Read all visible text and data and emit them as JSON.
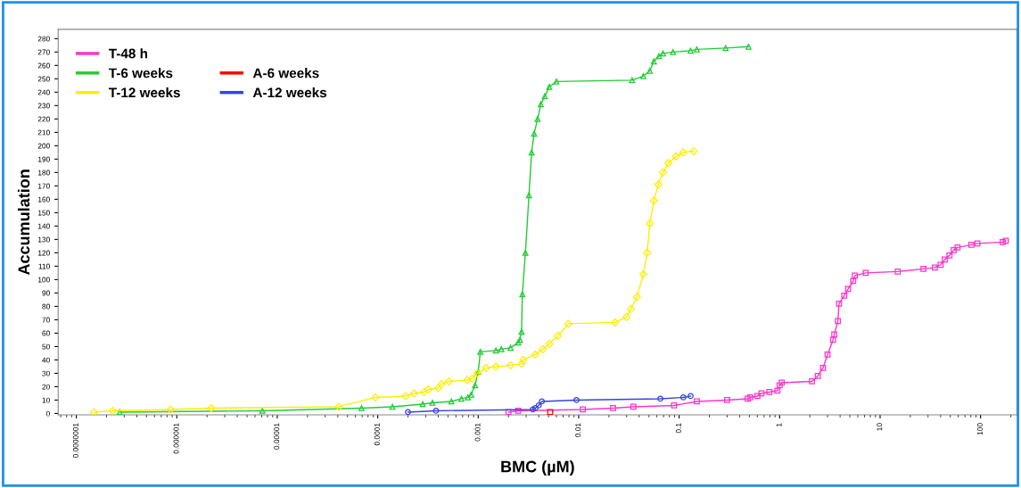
{
  "chart_data": {
    "type": "line",
    "xlabel": "BMC (µM)",
    "ylabel": "Accumulation",
    "log": "x",
    "grid": false,
    "legend": "top left",
    "line_style": "solid",
    "xlim": [
      6.6e-08,
      230
    ],
    "ylim": [
      -1,
      287
    ],
    "xticks": [
      {
        "value": 1e-07,
        "label": "0.0000001"
      },
      {
        "value": 1e-06,
        "label": "0.000001"
      },
      {
        "value": 1e-05,
        "label": "0.00001"
      },
      {
        "value": 0.0001,
        "label": "0.0001"
      },
      {
        "value": 0.001,
        "label": "0.001"
      },
      {
        "value": 0.01,
        "label": "0.01"
      },
      {
        "value": 0.1,
        "label": "0.1"
      },
      {
        "value": 1,
        "label": "1"
      },
      {
        "value": 10,
        "label": "10"
      },
      {
        "value": 100,
        "label": "100"
      }
    ],
    "yticks": [
      0,
      10,
      20,
      30,
      40,
      50,
      60,
      70,
      80,
      90,
      100,
      110,
      120,
      130,
      140,
      150,
      160,
      170,
      180,
      190,
      200,
      210,
      220,
      230,
      240,
      250,
      260,
      270,
      280
    ],
    "series": [
      {
        "name": "T-48 h",
        "color": "#ff33cc",
        "marker": "square",
        "x": [
          0.002,
          0.0025,
          0.011,
          0.022,
          0.035,
          0.089,
          0.15,
          0.3,
          0.48,
          0.51,
          0.6,
          0.66,
          0.79,
          0.95,
          1.0,
          1.05,
          2.1,
          2.4,
          2.7,
          3.0,
          3.4,
          3.5,
          3.8,
          3.9,
          4.4,
          4.8,
          5.4,
          5.6,
          7.2,
          15,
          27,
          35,
          40,
          44,
          49,
          54,
          59,
          81,
          93,
          166,
          178
        ],
        "values": [
          1,
          2,
          3,
          4,
          5,
          6,
          9,
          10,
          11,
          12,
          13,
          15,
          16,
          17,
          21,
          23,
          24,
          28,
          34,
          44,
          55,
          59,
          69,
          82,
          88,
          93,
          99,
          103,
          105,
          106,
          108,
          109,
          111,
          115,
          118,
          122,
          124,
          126,
          127,
          128,
          129
        ]
      },
      {
        "name": "T-6 weeks",
        "color": "#22cc33",
        "marker": "triangle",
        "x": [
          2.7e-07,
          7.1e-06,
          6.9e-05,
          0.00014,
          0.00028,
          0.00035,
          0.00054,
          0.00068,
          0.00079,
          0.00085,
          0.00093,
          0.001,
          0.00105,
          0.0015,
          0.0017,
          0.0021,
          0.0025,
          0.0026,
          0.0027,
          0.00275,
          0.00295,
          0.0032,
          0.0034,
          0.0036,
          0.0039,
          0.0042,
          0.0046,
          0.0051,
          0.006,
          0.034,
          0.044,
          0.051,
          0.056,
          0.063,
          0.069,
          0.087,
          0.13,
          0.15,
          0.29,
          0.49
        ],
        "values": [
          1,
          2,
          4,
          5,
          7,
          8,
          9,
          11,
          12,
          14,
          21,
          31,
          46,
          47,
          48,
          49,
          53,
          55,
          61,
          89,
          120,
          163,
          195,
          209,
          220,
          231,
          237,
          244,
          248,
          249,
          252,
          256,
          263,
          267,
          269,
          270,
          271,
          272,
          273,
          274
        ]
      },
      {
        "name": "T-12 weeks",
        "color": "#ffee00",
        "marker": "diamond",
        "x": [
          1.5e-07,
          2.3e-07,
          8.7e-07,
          2.2e-06,
          4.1e-05,
          9.5e-05,
          0.00019,
          0.00023,
          0.00029,
          0.00032,
          0.0004,
          0.00043,
          0.00051,
          0.00078,
          0.00087,
          0.00098,
          0.0012,
          0.0015,
          0.0021,
          0.0027,
          0.0028,
          0.0037,
          0.0044,
          0.0051,
          0.0062,
          0.0079,
          0.023,
          0.03,
          0.033,
          0.038,
          0.044,
          0.048,
          0.051,
          0.056,
          0.062,
          0.069,
          0.078,
          0.093,
          0.11,
          0.14
        ],
        "values": [
          1,
          2,
          3,
          4,
          5,
          12,
          13,
          15,
          16,
          18,
          19,
          22,
          24,
          25,
          26,
          30,
          34,
          35,
          36,
          37,
          40,
          44,
          48,
          52,
          58,
          67,
          68,
          72,
          78,
          87,
          104,
          120,
          142,
          159,
          171,
          180,
          187,
          192,
          195,
          196
        ]
      },
      {
        "name": "A-6 weeks",
        "color": "#ff0000",
        "marker": "square",
        "x": [
          0.0052
        ],
        "values": [
          1
        ]
      },
      {
        "name": "A-12 weeks",
        "color": "#3344dd",
        "marker": "circle",
        "x": [
          0.0002,
          0.00038,
          0.0035,
          0.0037,
          0.004,
          0.0043,
          0.0095,
          0.065,
          0.11,
          0.13
        ],
        "values": [
          1,
          2,
          3,
          4,
          6,
          9,
          10,
          11,
          12,
          13
        ]
      }
    ]
  }
}
